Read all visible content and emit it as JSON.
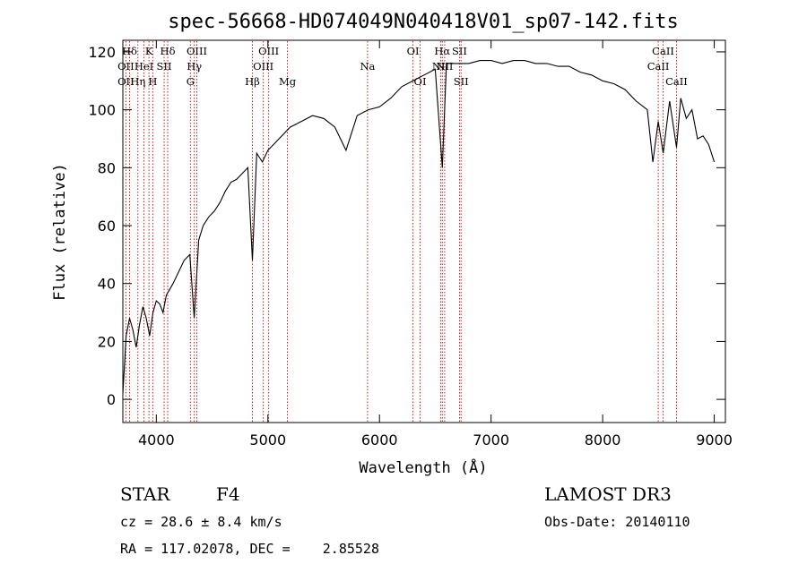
{
  "chart_data": {
    "type": "line",
    "title": "spec-56668-HD074049N040418V01_sp07-142.fits",
    "xlabel": "Wavelength (Å)",
    "ylabel": "Flux (relative)",
    "xlim": [
      3700,
      9100
    ],
    "ylim": [
      -8,
      124
    ],
    "xticks": [
      4000,
      5000,
      6000,
      7000,
      8000,
      9000
    ],
    "yticks": [
      0,
      20,
      40,
      60,
      80,
      100,
      120
    ],
    "grid": false,
    "line_color": "#000000",
    "marker_color": "#cc0000",
    "spectrum": {
      "x": [
        3700,
        3730,
        3760,
        3790,
        3820,
        3850,
        3880,
        3910,
        3940,
        3970,
        4000,
        4030,
        4060,
        4090,
        4120,
        4150,
        4200,
        4250,
        4300,
        4340,
        4380,
        4420,
        4470,
        4520,
        4570,
        4620,
        4670,
        4720,
        4770,
        4820,
        4861,
        4900,
        4950,
        5000,
        5050,
        5100,
        5150,
        5200,
        5300,
        5400,
        5500,
        5600,
        5700,
        5800,
        5900,
        6000,
        6100,
        6200,
        6300,
        6400,
        6500,
        6563,
        6600,
        6700,
        6800,
        6900,
        7000,
        7100,
        7200,
        7300,
        7400,
        7500,
        7600,
        7700,
        7800,
        7900,
        8000,
        8100,
        8200,
        8300,
        8400,
        8450,
        8498,
        8542,
        8600,
        8662,
        8700,
        8750,
        8800,
        8850,
        8900,
        8950,
        9000
      ],
      "y": [
        2,
        22,
        28,
        24,
        18,
        26,
        32,
        28,
        22,
        30,
        34,
        33,
        30,
        36,
        38,
        40,
        44,
        48,
        50,
        28,
        55,
        60,
        63,
        65,
        68,
        72,
        75,
        76,
        78,
        80,
        48,
        85,
        82,
        86,
        88,
        90,
        92,
        94,
        96,
        98,
        97,
        94,
        86,
        98,
        100,
        101,
        104,
        108,
        110,
        112,
        114,
        80,
        116,
        116,
        116,
        117,
        117,
        116,
        117,
        117,
        116,
        116,
        115,
        115,
        113,
        112,
        110,
        109,
        107,
        103,
        100,
        82,
        96,
        85,
        103,
        87,
        104,
        97,
        100,
        90,
        91,
        88,
        82
      ]
    },
    "spectral_lines": [
      {
        "label": "Hδ",
        "x": 3760,
        "row": 1
      },
      {
        "label": "K",
        "x": 3934,
        "row": 1
      },
      {
        "label": "Hδ",
        "x": 4102,
        "row": 1
      },
      {
        "label": "OIII",
        "x": 4363,
        "row": 1
      },
      {
        "label": "OIII",
        "x": 5007,
        "row": 1
      },
      {
        "label": "OI",
        "x": 6300,
        "row": 1
      },
      {
        "label": "Hα",
        "x": 6563,
        "row": 1
      },
      {
        "label": "SII",
        "x": 6717,
        "row": 1
      },
      {
        "label": "CaII",
        "x": 8542,
        "row": 1
      },
      {
        "label": "OII",
        "x": 3727,
        "row": 2
      },
      {
        "label": "HeI",
        "x": 3889,
        "row": 2
      },
      {
        "label": "SII",
        "x": 4070,
        "row": 2
      },
      {
        "label": "Hγ",
        "x": 4340,
        "row": 2
      },
      {
        "label": "OIII",
        "x": 4959,
        "row": 2
      },
      {
        "label": "Na",
        "x": 5893,
        "row": 2
      },
      {
        "label": "NII",
        "x": 6548,
        "row": 2
      },
      {
        "label": "NII",
        "x": 6584,
        "row": 2
      },
      {
        "label": "CaII",
        "x": 8498,
        "row": 2
      },
      {
        "label": "OII",
        "x": 3727,
        "row": 3
      },
      {
        "label": "Hη",
        "x": 3835,
        "row": 3
      },
      {
        "label": "H",
        "x": 3968,
        "row": 3
      },
      {
        "label": "G",
        "x": 4305,
        "row": 3
      },
      {
        "label": "Hβ",
        "x": 4861,
        "row": 3
      },
      {
        "label": "Mg",
        "x": 5175,
        "row": 3
      },
      {
        "label": "OI",
        "x": 6364,
        "row": 3
      },
      {
        "label": "SII",
        "x": 6731,
        "row": 3
      },
      {
        "label": "CaII",
        "x": 8662,
        "row": 3
      }
    ]
  },
  "info": {
    "object_type": "STAR",
    "subclass": "F4",
    "survey": "LAMOST DR3",
    "cz": "cz = 28.6 ± 8.4 km/s",
    "obs_date": "Obs-Date: 20140110",
    "radec": "RA = 117.02078, DEC =    2.85528"
  }
}
